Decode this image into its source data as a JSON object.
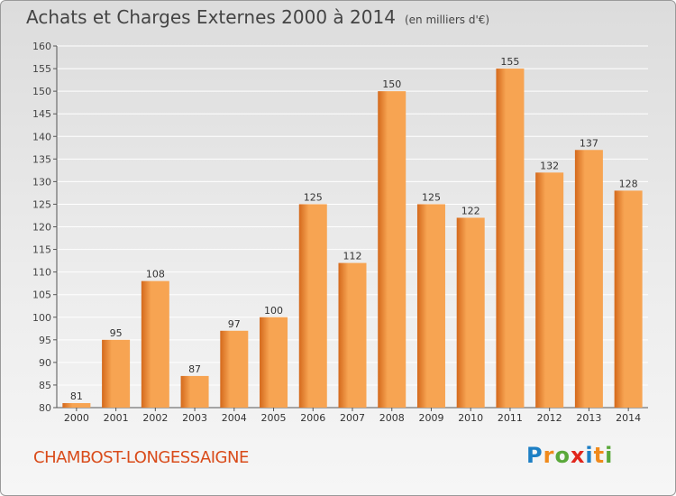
{
  "header": {
    "title": "Achats et Charges Externes 2000 à 2014",
    "unit": "(en milliers d'€)"
  },
  "footer": {
    "commune": "CHAMBOST-LONGESSAIGNE",
    "logo": [
      "P",
      "r",
      "o",
      "x",
      "i",
      "t",
      "i"
    ],
    "logo_colors": [
      "#1d7fc4",
      "#f08a1c",
      "#5aa83a",
      "#e1261c",
      "#1d7fc4",
      "#f08a1c",
      "#5aa83a"
    ]
  },
  "colors": {
    "bar_light": "#f7a452",
    "bar_dark": "#d4691c",
    "grid": "#ffffff",
    "axis": "#555555"
  },
  "chart_data": {
    "type": "bar",
    "title": "Achats et Charges Externes 2000 à 2014",
    "subtitle": "(en milliers d'€)",
    "xlabel": "",
    "ylabel": "",
    "categories": [
      "2000",
      "2001",
      "2002",
      "2003",
      "2004",
      "2005",
      "2006",
      "2007",
      "2008",
      "2009",
      "2010",
      "2011",
      "2012",
      "2013",
      "2014"
    ],
    "values": [
      81,
      95,
      108,
      87,
      97,
      100,
      125,
      112,
      150,
      125,
      122,
      155,
      132,
      137,
      128
    ],
    "ylim": [
      80,
      160
    ],
    "yticks": [
      80,
      85,
      90,
      95,
      100,
      105,
      110,
      115,
      120,
      125,
      130,
      135,
      140,
      145,
      150,
      155,
      160
    ],
    "grid": true,
    "data_labels": true
  }
}
